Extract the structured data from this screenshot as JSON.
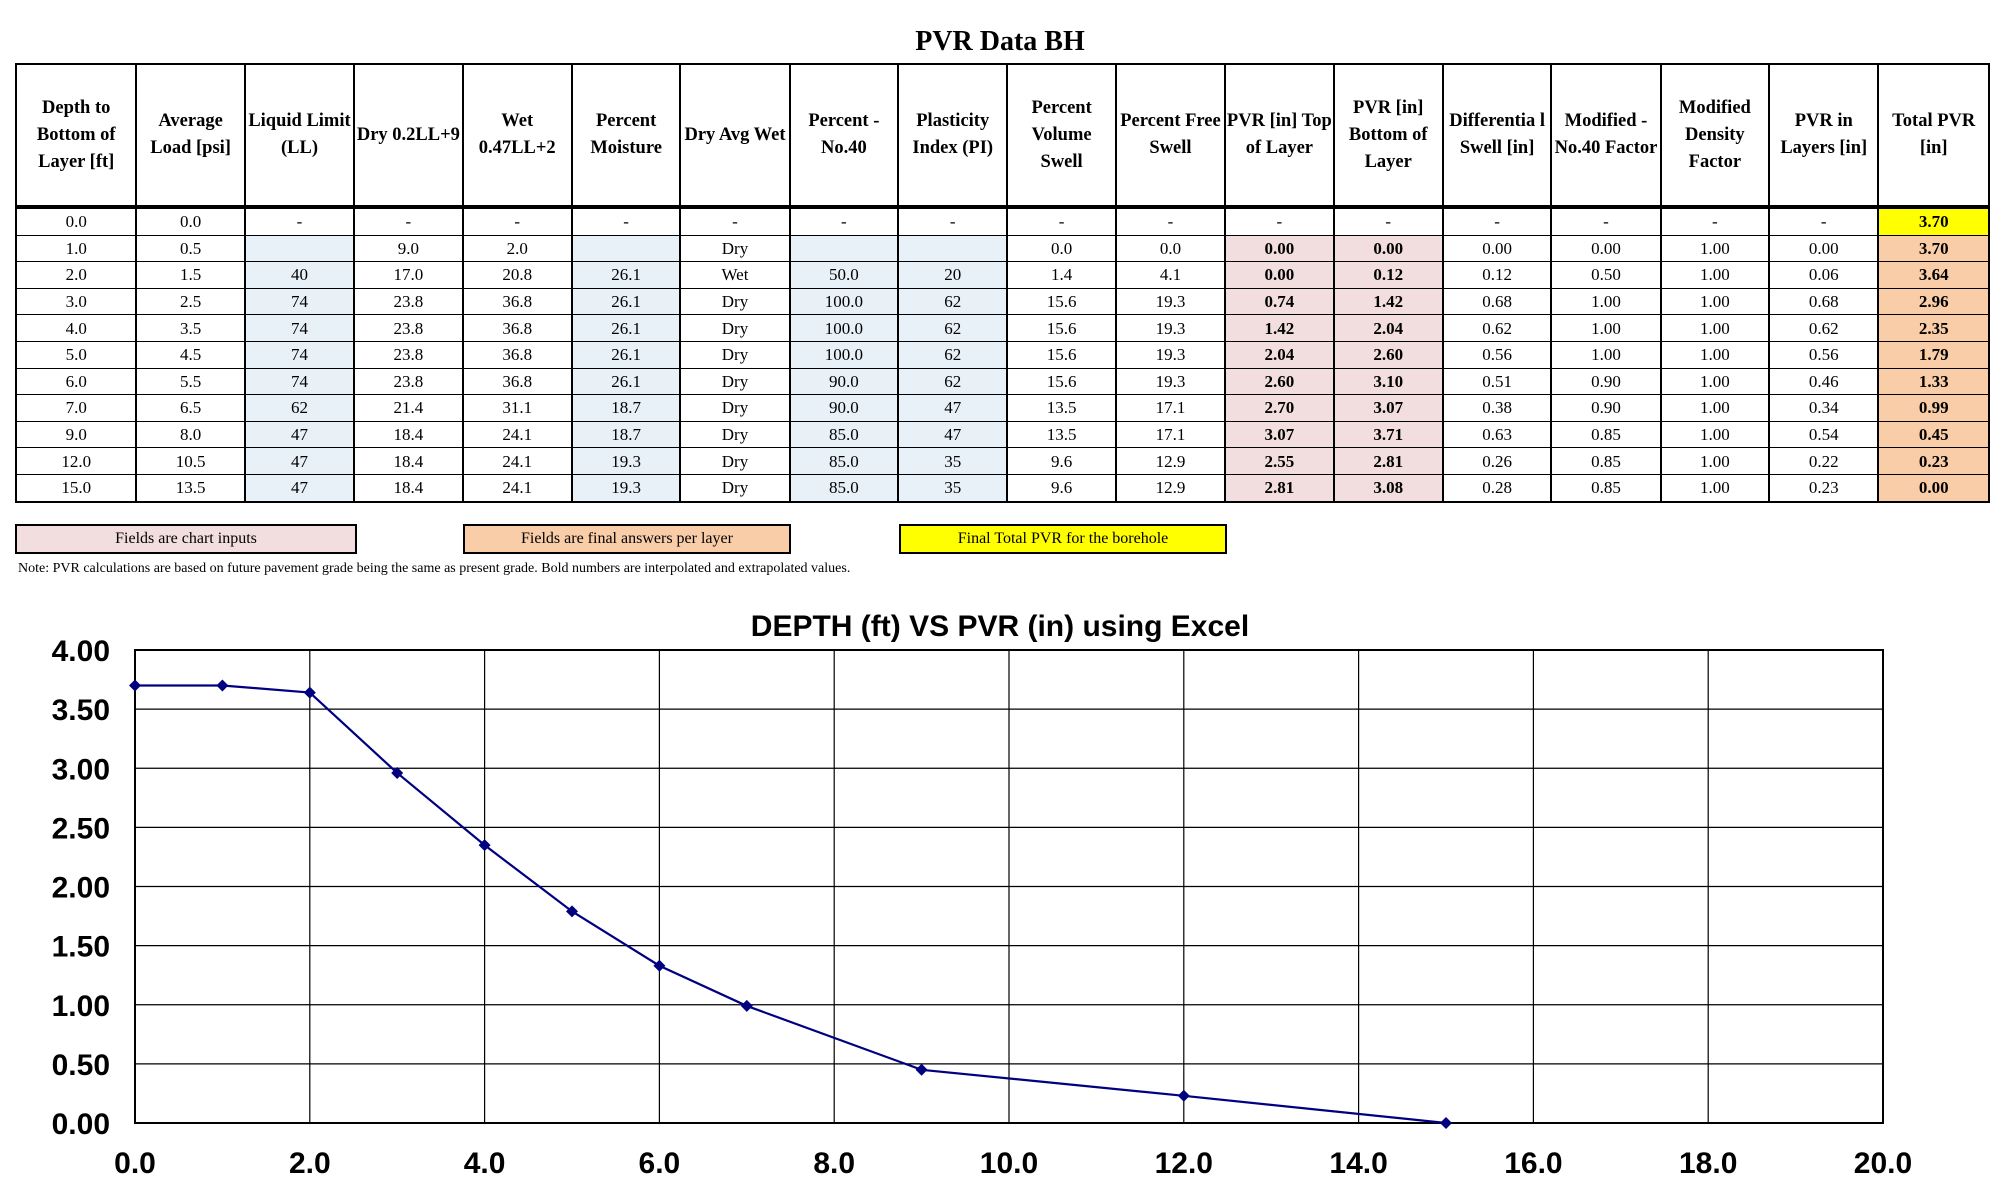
{
  "title": "PVR Data BH",
  "table": {
    "headers": [
      "Depth to Bottom of Layer [ft]",
      "Average Load [psi]",
      "Liquid Limit (LL)",
      "Dry 0.2LL+9",
      "Wet 0.47LL+2",
      "Percent Moisture",
      "Dry Avg Wet",
      "Percent -No.40",
      "Plasticity Index (PI)",
      "Percent Volume Swell",
      "Percent Free Swell",
      "PVR [in] Top of Layer",
      "PVR [in] Bottom of Layer",
      "Differentia l Swell [in]",
      "Modified -No.40 Factor",
      "Modified Density Factor",
      "PVR in Layers [in]",
      "Total PVR [in]"
    ],
    "rows": [
      [
        "0.0",
        "0.0",
        "-",
        "-",
        "-",
        "-",
        "-",
        "-",
        "-",
        "-",
        "-",
        "-",
        "-",
        "-",
        "-",
        "-",
        "-",
        "3.70"
      ],
      [
        "1.0",
        "0.5",
        "",
        "9.0",
        "2.0",
        "",
        "Dry",
        "",
        "",
        "0.0",
        "0.0",
        "0.00",
        "0.00",
        "0.00",
        "0.00",
        "1.00",
        "0.00",
        "3.70"
      ],
      [
        "2.0",
        "1.5",
        "40",
        "17.0",
        "20.8",
        "26.1",
        "Wet",
        "50.0",
        "20",
        "1.4",
        "4.1",
        "0.00",
        "0.12",
        "0.12",
        "0.50",
        "1.00",
        "0.06",
        "3.64"
      ],
      [
        "3.0",
        "2.5",
        "74",
        "23.8",
        "36.8",
        "26.1",
        "Dry",
        "100.0",
        "62",
        "15.6",
        "19.3",
        "0.74",
        "1.42",
        "0.68",
        "1.00",
        "1.00",
        "0.68",
        "2.96"
      ],
      [
        "4.0",
        "3.5",
        "74",
        "23.8",
        "36.8",
        "26.1",
        "Dry",
        "100.0",
        "62",
        "15.6",
        "19.3",
        "1.42",
        "2.04",
        "0.62",
        "1.00",
        "1.00",
        "0.62",
        "2.35"
      ],
      [
        "5.0",
        "4.5",
        "74",
        "23.8",
        "36.8",
        "26.1",
        "Dry",
        "100.0",
        "62",
        "15.6",
        "19.3",
        "2.04",
        "2.60",
        "0.56",
        "1.00",
        "1.00",
        "0.56",
        "1.79"
      ],
      [
        "6.0",
        "5.5",
        "74",
        "23.8",
        "36.8",
        "26.1",
        "Dry",
        "90.0",
        "62",
        "15.6",
        "19.3",
        "2.60",
        "3.10",
        "0.51",
        "0.90",
        "1.00",
        "0.46",
        "1.33"
      ],
      [
        "7.0",
        "6.5",
        "62",
        "21.4",
        "31.1",
        "18.7",
        "Dry",
        "90.0",
        "47",
        "13.5",
        "17.1",
        "2.70",
        "3.07",
        "0.38",
        "0.90",
        "1.00",
        "0.34",
        "0.99"
      ],
      [
        "9.0",
        "8.0",
        "47",
        "18.4",
        "24.1",
        "18.7",
        "Dry",
        "85.0",
        "47",
        "13.5",
        "17.1",
        "3.07",
        "3.71",
        "0.63",
        "0.85",
        "1.00",
        "0.54",
        "0.45"
      ],
      [
        "12.0",
        "10.5",
        "47",
        "18.4",
        "24.1",
        "19.3",
        "Dry",
        "85.0",
        "35",
        "9.6",
        "12.9",
        "2.55",
        "2.81",
        "0.26",
        "0.85",
        "1.00",
        "0.22",
        "0.23"
      ],
      [
        "15.0",
        "13.5",
        "47",
        "18.4",
        "24.1",
        "19.3",
        "Dry",
        "85.0",
        "35",
        "9.6",
        "12.9",
        "2.81",
        "3.08",
        "0.28",
        "0.85",
        "1.00",
        "0.23",
        "0.00"
      ]
    ]
  },
  "legend": {
    "chart_inputs": "Fields are chart inputs",
    "final_answers": "Fields are final answers per layer",
    "final_total": "Final Total PVR for the borehole"
  },
  "note": "Note: PVR calculations are based on future pavement grade being the same as present grade. Bold numbers are interpolated and extrapolated values.",
  "colors": {
    "input_blue": "#e8f0f8",
    "chart_input_pink": "#f2dede",
    "final_peach": "#f9cda8",
    "total_yellow": "#ffff00",
    "series_line": "#000080"
  },
  "chart_data": {
    "type": "line",
    "title": "DEPTH (ft) VS PVR (in) using Excel",
    "xlabel": "",
    "ylabel": "",
    "xlim": [
      0,
      20
    ],
    "ylim": [
      0,
      4
    ],
    "xticks": [
      "0.0",
      "2.0",
      "4.0",
      "6.0",
      "8.0",
      "10.0",
      "12.0",
      "14.0",
      "16.0",
      "18.0",
      "20.0"
    ],
    "yticks": [
      "0.00",
      "0.50",
      "1.00",
      "1.50",
      "2.00",
      "2.50",
      "3.00",
      "3.50",
      "4.00"
    ],
    "grid": true,
    "legend": "none",
    "series": [
      {
        "x": [
          0.0,
          1.0,
          2.0,
          3.0,
          4.0,
          5.0,
          6.0,
          7.0,
          9.0,
          12.0,
          15.0
        ],
        "y": [
          3.7,
          3.7,
          3.64,
          2.96,
          2.35,
          1.79,
          1.33,
          0.99,
          0.45,
          0.23,
          0.0
        ]
      }
    ]
  }
}
